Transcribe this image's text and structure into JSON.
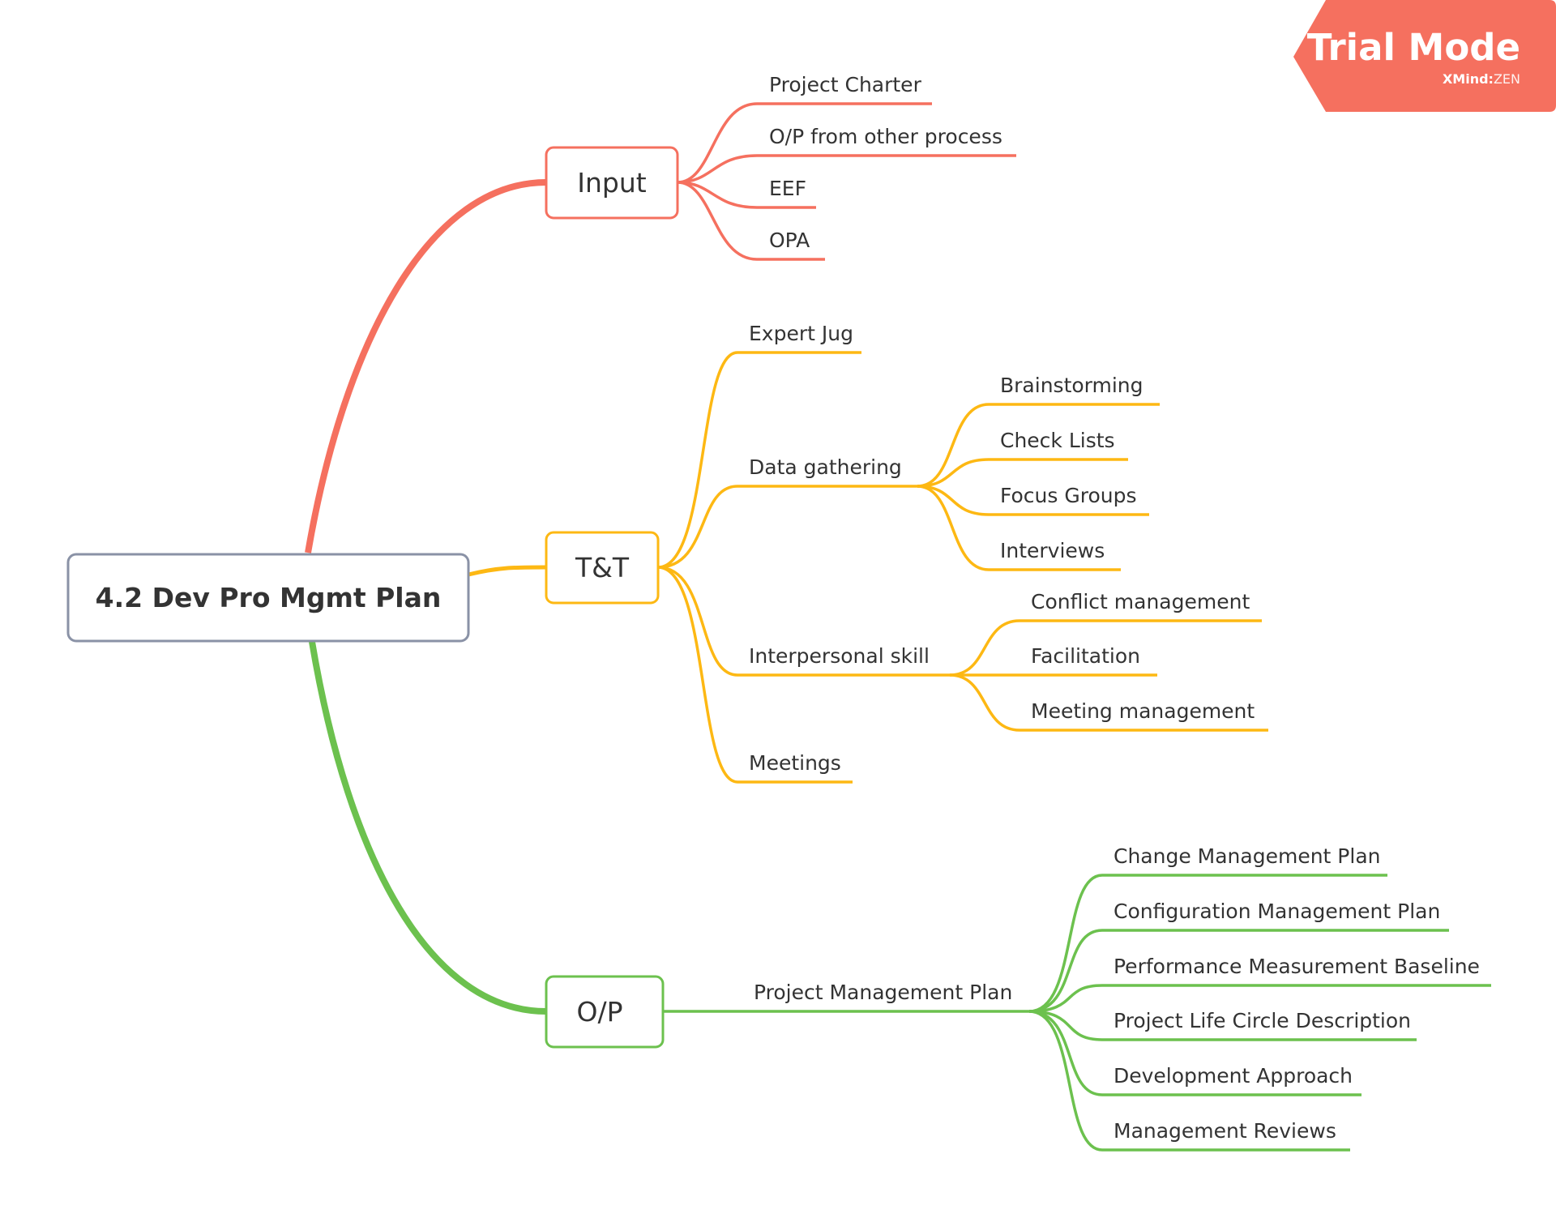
{
  "root": {
    "label": "4.2 Dev Pro Mgmt Plan"
  },
  "colors": {
    "input": "#f5705f",
    "tt": "#fdb813",
    "op": "#6cc14e",
    "root_border": "#8a92a6",
    "badge": "#f5705f"
  },
  "branches": {
    "input": {
      "label": "Input",
      "items": [
        "Project Charter",
        "O/P from other process",
        "EEF",
        "OPA"
      ]
    },
    "tt": {
      "label": "T&T",
      "items": {
        "expert": "Expert Jug",
        "data_gathering": {
          "label": "Data gathering",
          "items": [
            "Brainstorming",
            "Check Lists",
            "Focus Groups",
            "Interviews"
          ]
        },
        "interpersonal": {
          "label": "Interpersonal skill",
          "items": [
            "Conflict management",
            "Facilitation",
            "Meeting management"
          ]
        },
        "meetings": "Meetings"
      }
    },
    "op": {
      "label": "O/P",
      "pmp": {
        "label": "Project Management Plan",
        "items": [
          "Change Management Plan",
          "Configuration Management Plan",
          "Performance Measurement Baseline",
          "Project Life Circle Description",
          "Development Approach",
          "Management Reviews"
        ]
      }
    }
  },
  "badge": {
    "title": "Trial Mode",
    "brand": "XMind",
    "brand_sep": ":",
    "brand_suffix": "ZEN"
  }
}
